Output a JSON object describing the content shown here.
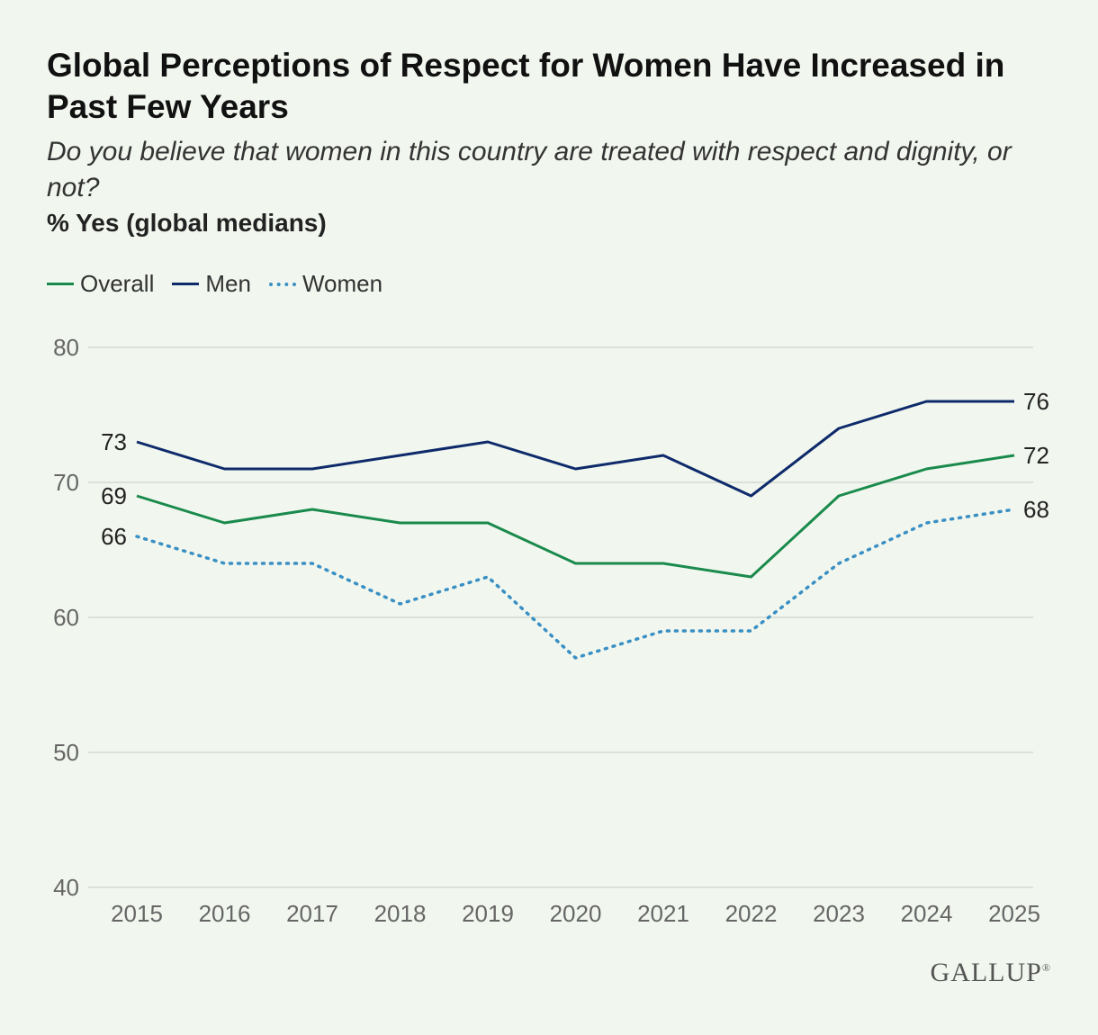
{
  "chart_data": {
    "type": "line",
    "title": "Global Perceptions of Respect for Women Have Increased in Past Few Years",
    "subtitle": "Do you believe that women in this country are treated with respect and dignity, or not?",
    "measure": "% Yes (global medians)",
    "x": [
      "2015",
      "2016",
      "2017",
      "2018",
      "2019",
      "2020",
      "2021",
      "2022",
      "2023",
      "2024",
      "2025"
    ],
    "ylim": [
      40,
      80
    ],
    "yticks": [
      40,
      50,
      60,
      70,
      80
    ],
    "grid": true,
    "legend_position": "top-left",
    "series": [
      {
        "name": "Overall",
        "color": "#1a8a4c",
        "style": "solid",
        "values": [
          69,
          67,
          68,
          67,
          67,
          64,
          64,
          63,
          69,
          71,
          72
        ]
      },
      {
        "name": "Men",
        "color": "#0e2a6b",
        "style": "solid",
        "values": [
          73,
          71,
          71,
          72,
          73,
          71,
          72,
          69,
          74,
          76,
          76
        ]
      },
      {
        "name": "Women",
        "color": "#3a8fc4",
        "style": "dotted",
        "values": [
          66,
          64,
          64,
          61,
          63,
          57,
          59,
          59,
          64,
          67,
          68
        ]
      }
    ],
    "data_labels": {
      "start": [
        {
          "series": "Men",
          "text": "73"
        },
        {
          "series": "Overall",
          "text": "69"
        },
        {
          "series": "Women",
          "text": "66"
        }
      ],
      "end": [
        {
          "series": "Men",
          "text": "76"
        },
        {
          "series": "Overall",
          "text": "72"
        },
        {
          "series": "Women",
          "text": "68"
        }
      ]
    }
  },
  "branding": {
    "logo_text": "GALLUP",
    "logo_mark": "®"
  }
}
